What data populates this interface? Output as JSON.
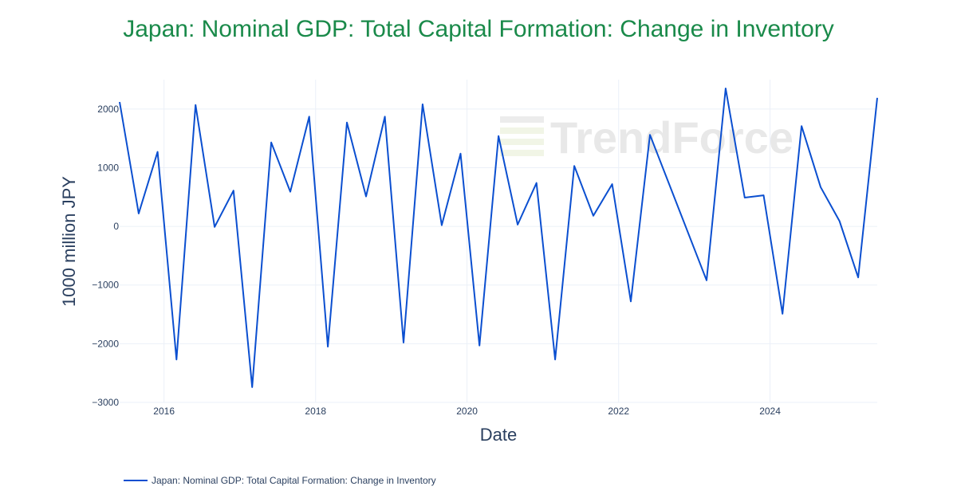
{
  "chart_data": {
    "type": "line",
    "title": "Japan: Nominal GDP: Total Capital Formation: Change in Inventory",
    "xlabel": "Date",
    "ylabel": "1000 million JPY",
    "ylim": [
      -3000,
      2500
    ],
    "xlim": [
      "2015-06-01",
      "2025-06-01"
    ],
    "y_ticks": [
      2000,
      1000,
      0,
      -1000,
      -2000,
      -3000
    ],
    "y_tick_labels": [
      "2000",
      "1000",
      "0",
      "−1000",
      "−2000",
      "−3000"
    ],
    "x_ticks": [
      "2016-01-01",
      "2018-01-01",
      "2020-01-01",
      "2022-01-01",
      "2024-01-01"
    ],
    "x_tick_labels": [
      "2016",
      "2018",
      "2020",
      "2022",
      "2024"
    ],
    "grid": true,
    "legend_position": "bottom-left",
    "series": [
      {
        "name": "Japan: Nominal GDP: Total Capital Formation: Change in Inventory",
        "color": "#0b4fd0",
        "x": [
          "2015-06-01",
          "2015-09-01",
          "2015-12-01",
          "2016-03-01",
          "2016-06-01",
          "2016-09-01",
          "2016-12-01",
          "2017-03-01",
          "2017-06-01",
          "2017-09-01",
          "2017-12-01",
          "2018-03-01",
          "2018-06-01",
          "2018-09-01",
          "2018-12-01",
          "2019-03-01",
          "2019-06-01",
          "2019-09-01",
          "2019-12-01",
          "2020-03-01",
          "2020-06-01",
          "2020-09-01",
          "2020-12-01",
          "2021-03-01",
          "2021-06-01",
          "2021-09-01",
          "2021-12-01",
          "2022-03-01",
          "2022-06-01",
          "2023-03-01",
          "2023-06-01",
          "2023-09-01",
          "2023-12-01",
          "2024-03-01",
          "2024-06-01",
          "2024-09-01",
          "2024-12-01",
          "2025-03-01",
          "2025-06-01"
        ],
        "values": [
          2120,
          220,
          1270,
          -2270,
          2070,
          -10,
          610,
          -2740,
          1430,
          590,
          1870,
          -2050,
          1770,
          510,
          1870,
          -1980,
          2080,
          20,
          1240,
          -2030,
          1540,
          30,
          740,
          -2270,
          1030,
          180,
          720,
          -1280,
          1560,
          -920,
          2350,
          490,
          530,
          -1490,
          1710,
          670,
          90,
          -870,
          2190
        ]
      }
    ]
  },
  "watermark": "TrendForce"
}
